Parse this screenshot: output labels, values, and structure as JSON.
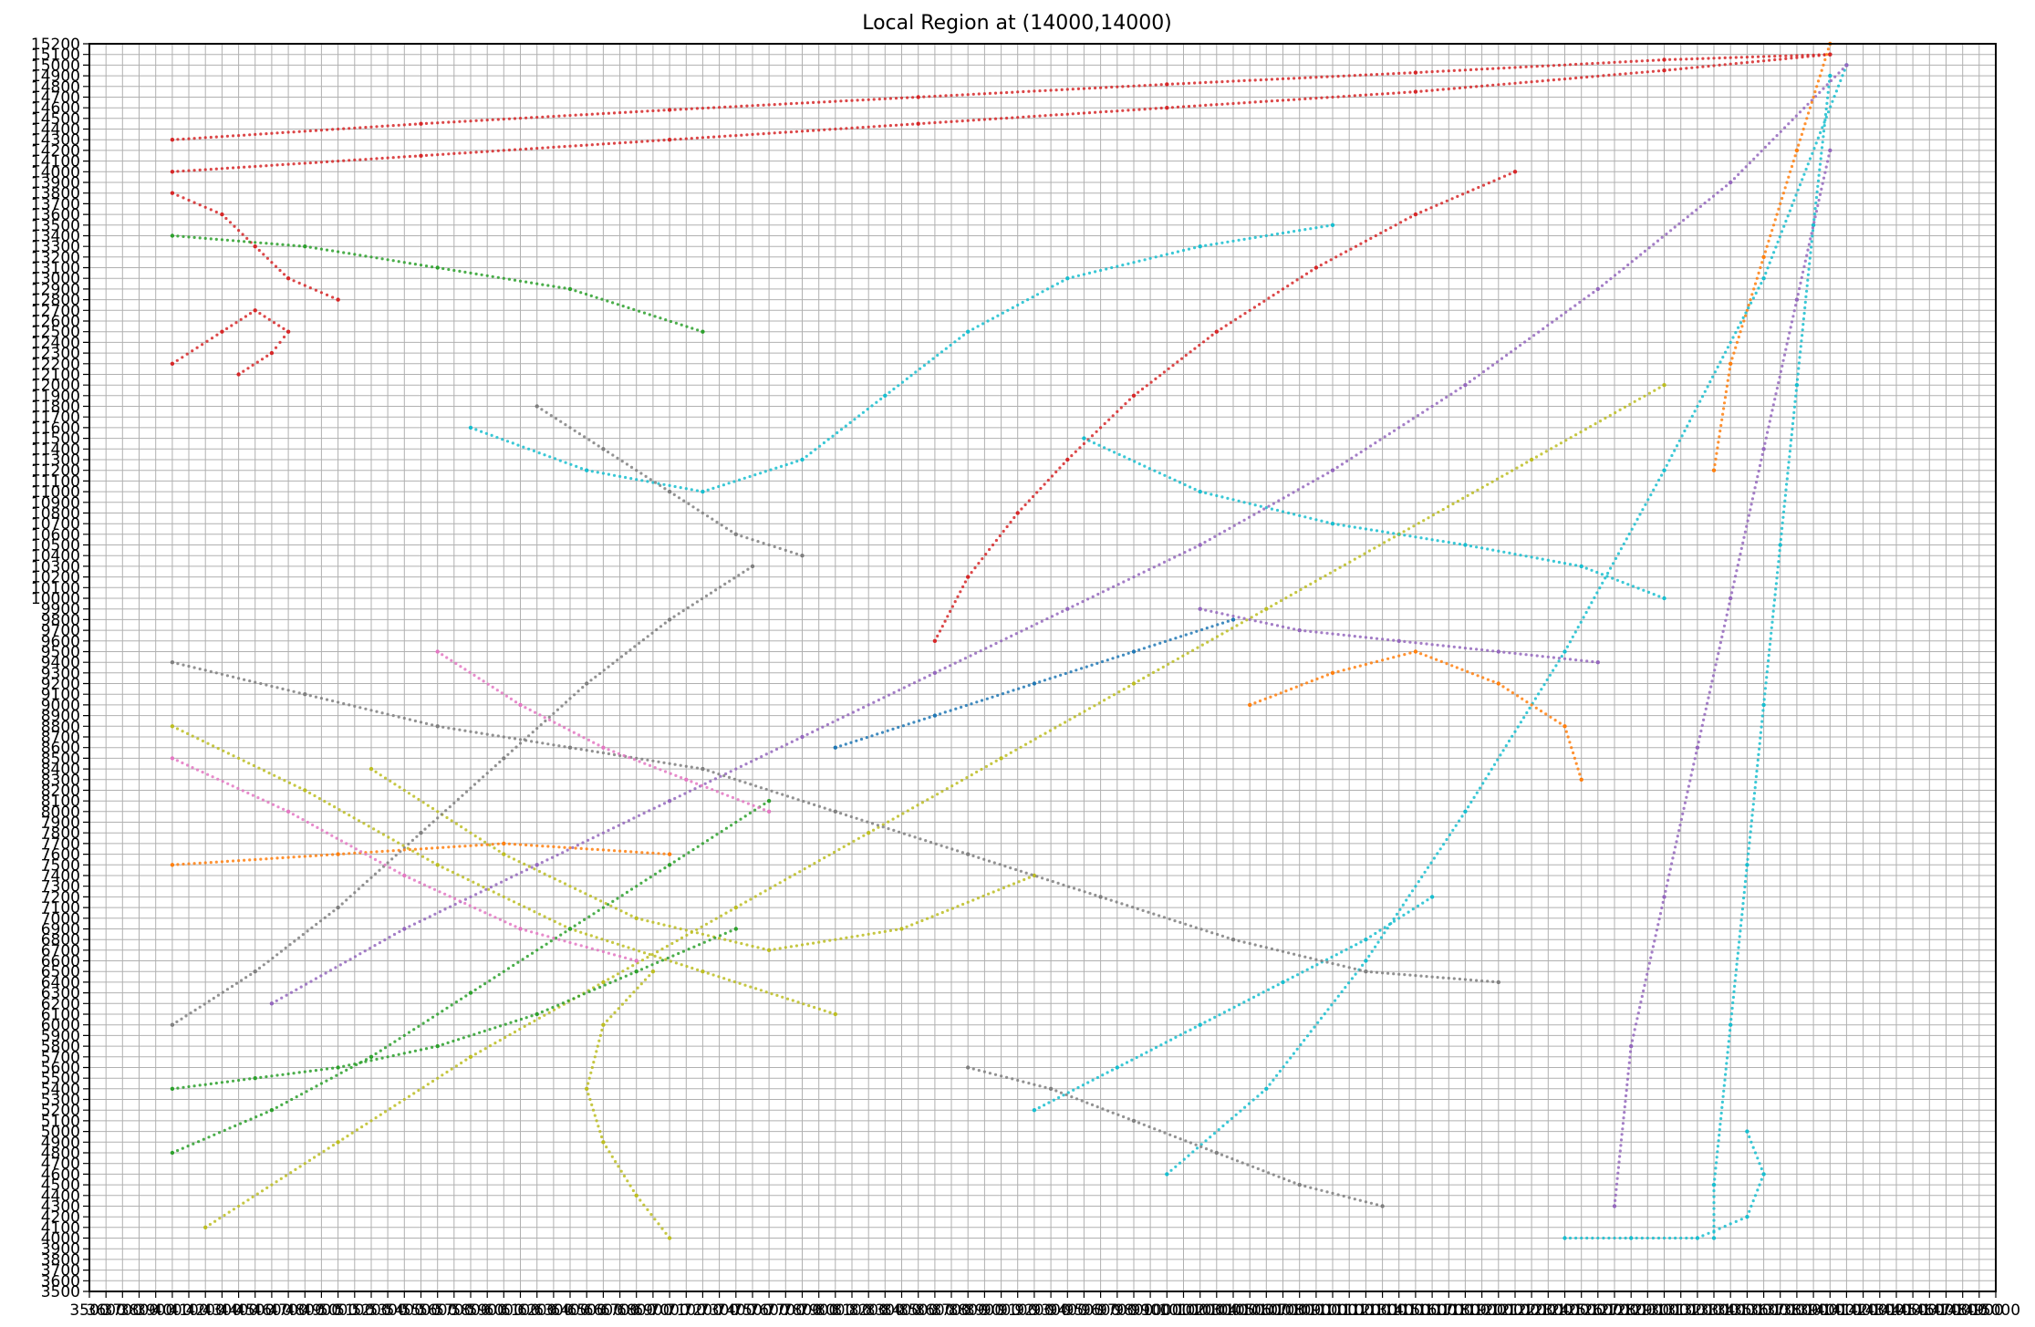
{
  "chart_data": {
    "type": "scatter",
    "title": "Local Region at (14000,14000)",
    "xlabel": "",
    "ylabel": "",
    "xlim": [
      3500,
      15000
    ],
    "ylim": [
      3500,
      15200
    ],
    "grid": true,
    "grid_step": 100,
    "tick_step": 100,
    "legend": "none",
    "series_colors": [
      "#1f77b4",
      "#ff7f0e",
      "#2ca02c",
      "#d62728",
      "#9467bd",
      "#8c564b",
      "#e377c2",
      "#7f7f7f",
      "#bcbd22",
      "#17becf"
    ],
    "series": [
      {
        "color": "#d62728",
        "points": [
          [
            4000,
            14300
          ],
          [
            5500,
            14450
          ],
          [
            7000,
            14580
          ],
          [
            8500,
            14700
          ],
          [
            10000,
            14820
          ],
          [
            11500,
            14930
          ],
          [
            13000,
            15050
          ],
          [
            14000,
            15100
          ]
        ]
      },
      {
        "color": "#d62728",
        "points": [
          [
            4000,
            14000
          ],
          [
            5500,
            14150
          ],
          [
            7000,
            14300
          ],
          [
            8500,
            14450
          ],
          [
            10000,
            14600
          ],
          [
            11500,
            14750
          ],
          [
            13000,
            14950
          ],
          [
            14000,
            15100
          ]
        ]
      },
      {
        "color": "#d62728",
        "points": [
          [
            4000,
            13800
          ],
          [
            4300,
            13600
          ],
          [
            4500,
            13300
          ],
          [
            4700,
            13000
          ],
          [
            5000,
            12800
          ]
        ]
      },
      {
        "color": "#d62728",
        "points": [
          [
            4000,
            12200
          ],
          [
            4300,
            12500
          ],
          [
            4500,
            12700
          ],
          [
            4700,
            12500
          ],
          [
            4600,
            12300
          ],
          [
            4400,
            12100
          ]
        ]
      },
      {
        "color": "#d62728",
        "points": [
          [
            8600,
            9600
          ],
          [
            8800,
            10200
          ],
          [
            9100,
            10800
          ],
          [
            9400,
            11300
          ],
          [
            9800,
            11900
          ],
          [
            10300,
            12500
          ],
          [
            10900,
            13100
          ],
          [
            11500,
            13600
          ],
          [
            12100,
            14000
          ]
        ]
      },
      {
        "color": "#bcbd22",
        "points": [
          [
            4200,
            4100
          ],
          [
            5000,
            4900
          ],
          [
            5800,
            5700
          ],
          [
            6600,
            6400
          ],
          [
            7400,
            7100
          ],
          [
            8200,
            7800
          ],
          [
            9000,
            8500
          ],
          [
            9800,
            9200
          ],
          [
            10600,
            9900
          ],
          [
            11400,
            10600
          ],
          [
            12200,
            11300
          ],
          [
            13000,
            12000
          ]
        ]
      },
      {
        "color": "#bcbd22",
        "points": [
          [
            4000,
            8800
          ],
          [
            4800,
            8200
          ],
          [
            5600,
            7500
          ],
          [
            6400,
            6900
          ],
          [
            7200,
            6500
          ],
          [
            8000,
            6100
          ]
        ]
      },
      {
        "color": "#bcbd22",
        "points": [
          [
            5200,
            8400
          ],
          [
            6000,
            7600
          ],
          [
            6800,
            7000
          ],
          [
            7600,
            6700
          ],
          [
            8400,
            6900
          ],
          [
            9200,
            7400
          ]
        ]
      },
      {
        "color": "#bcbd22",
        "points": [
          [
            7000,
            4000
          ],
          [
            6800,
            4400
          ],
          [
            6600,
            4900
          ],
          [
            6500,
            5400
          ],
          [
            6600,
            6000
          ],
          [
            6900,
            6500
          ]
        ]
      },
      {
        "color": "#17becf",
        "points": [
          [
            14000,
            14900
          ],
          [
            13900,
            13500
          ],
          [
            13800,
            12000
          ],
          [
            13700,
            10500
          ],
          [
            13600,
            9000
          ],
          [
            13500,
            7500
          ],
          [
            13400,
            6000
          ],
          [
            13300,
            4500
          ],
          [
            13300,
            4000
          ]
        ]
      },
      {
        "color": "#17becf",
        "points": [
          [
            14100,
            15000
          ],
          [
            13600,
            13000
          ],
          [
            13000,
            11200
          ],
          [
            12400,
            9500
          ],
          [
            11800,
            8000
          ],
          [
            11200,
            6600
          ],
          [
            10600,
            5400
          ],
          [
            10000,
            4600
          ]
        ]
      },
      {
        "color": "#17becf",
        "points": [
          [
            9500,
            11500
          ],
          [
            10200,
            11000
          ],
          [
            11000,
            10700
          ],
          [
            11800,
            10500
          ],
          [
            12500,
            10300
          ],
          [
            13000,
            10000
          ]
        ]
      },
      {
        "color": "#17becf",
        "points": [
          [
            5800,
            11600
          ],
          [
            6500,
            11200
          ],
          [
            7200,
            11000
          ],
          [
            7800,
            11300
          ],
          [
            8300,
            11900
          ],
          [
            8800,
            12500
          ],
          [
            9400,
            13000
          ],
          [
            10200,
            13300
          ],
          [
            11000,
            13500
          ]
        ]
      },
      {
        "color": "#17becf",
        "points": [
          [
            12400,
            4000
          ],
          [
            12800,
            4000
          ],
          [
            13200,
            4000
          ],
          [
            13500,
            4200
          ],
          [
            13600,
            4600
          ],
          [
            13500,
            5000
          ]
        ]
      },
      {
        "color": "#17becf",
        "points": [
          [
            9200,
            5200
          ],
          [
            9700,
            5600
          ],
          [
            10200,
            6000
          ],
          [
            10700,
            6400
          ],
          [
            11200,
            6800
          ],
          [
            11600,
            7200
          ]
        ]
      },
      {
        "color": "#9467bd",
        "points": [
          [
            14100,
            15000
          ],
          [
            13400,
            13900
          ],
          [
            12600,
            12900
          ],
          [
            11800,
            12000
          ],
          [
            11000,
            11200
          ],
          [
            10200,
            10500
          ],
          [
            9400,
            9900
          ],
          [
            8600,
            9300
          ],
          [
            7800,
            8700
          ],
          [
            7000,
            8100
          ],
          [
            6200,
            7500
          ],
          [
            5400,
            6900
          ],
          [
            4600,
            6200
          ]
        ]
      },
      {
        "color": "#9467bd",
        "points": [
          [
            14000,
            14200
          ],
          [
            13800,
            12800
          ],
          [
            13600,
            11400
          ],
          [
            13400,
            10000
          ],
          [
            13200,
            8600
          ],
          [
            13000,
            7200
          ],
          [
            12800,
            5800
          ],
          [
            12700,
            4300
          ]
        ]
      },
      {
        "color": "#9467bd",
        "points": [
          [
            10200,
            9900
          ],
          [
            10800,
            9700
          ],
          [
            11400,
            9600
          ],
          [
            12000,
            9500
          ],
          [
            12600,
            9400
          ]
        ]
      },
      {
        "color": "#7f7f7f",
        "points": [
          [
            4000,
            9400
          ],
          [
            4800,
            9100
          ],
          [
            5600,
            8800
          ],
          [
            6400,
            8600
          ],
          [
            7200,
            8400
          ],
          [
            8000,
            8000
          ],
          [
            8800,
            7600
          ],
          [
            9600,
            7200
          ],
          [
            10400,
            6800
          ],
          [
            11200,
            6500
          ],
          [
            12000,
            6400
          ]
        ]
      },
      {
        "color": "#7f7f7f",
        "points": [
          [
            4000,
            6000
          ],
          [
            4500,
            6500
          ],
          [
            5000,
            7100
          ],
          [
            5500,
            7800
          ],
          [
            6000,
            8500
          ],
          [
            6500,
            9200
          ],
          [
            7000,
            9800
          ],
          [
            7500,
            10300
          ]
        ]
      },
      {
        "color": "#7f7f7f",
        "points": [
          [
            6200,
            11800
          ],
          [
            6600,
            11400
          ],
          [
            7000,
            11000
          ],
          [
            7400,
            10600
          ],
          [
            7800,
            10400
          ]
        ]
      },
      {
        "color": "#7f7f7f",
        "points": [
          [
            8800,
            5600
          ],
          [
            9300,
            5400
          ],
          [
            9800,
            5100
          ],
          [
            10300,
            4800
          ],
          [
            10800,
            4500
          ],
          [
            11300,
            4300
          ]
        ]
      },
      {
        "color": "#ff7f0e",
        "points": [
          [
            10500,
            9000
          ],
          [
            11000,
            9300
          ],
          [
            11500,
            9500
          ],
          [
            12000,
            9200
          ],
          [
            12400,
            8800
          ],
          [
            12500,
            8300
          ]
        ]
      },
      {
        "color": "#ff7f0e",
        "points": [
          [
            14000,
            15200
          ],
          [
            13800,
            14200
          ],
          [
            13600,
            13200
          ],
          [
            13400,
            12200
          ],
          [
            13300,
            11200
          ]
        ]
      },
      {
        "color": "#ff7f0e",
        "points": [
          [
            4000,
            7500
          ],
          [
            5000,
            7600
          ],
          [
            6000,
            7700
          ],
          [
            7000,
            7600
          ]
        ]
      },
      {
        "color": "#2ca02c",
        "points": [
          [
            4000,
            5400
          ],
          [
            4500,
            5500
          ],
          [
            5000,
            5600
          ],
          [
            5600,
            5800
          ],
          [
            6200,
            6100
          ],
          [
            6800,
            6500
          ],
          [
            7400,
            6900
          ]
        ]
      },
      {
        "color": "#2ca02c",
        "points": [
          [
            4000,
            4800
          ],
          [
            4600,
            5200
          ],
          [
            5200,
            5700
          ],
          [
            5800,
            6300
          ],
          [
            6400,
            6900
          ],
          [
            7000,
            7500
          ],
          [
            7600,
            8100
          ]
        ]
      },
      {
        "color": "#2ca02c",
        "points": [
          [
            4000,
            13400
          ],
          [
            4800,
            13300
          ],
          [
            5600,
            13100
          ],
          [
            6400,
            12900
          ],
          [
            7200,
            12500
          ]
        ]
      },
      {
        "color": "#e377c2",
        "points": [
          [
            4000,
            8500
          ],
          [
            4700,
            8000
          ],
          [
            5400,
            7400
          ],
          [
            6100,
            6900
          ],
          [
            6800,
            6600
          ]
        ]
      },
      {
        "color": "#e377c2",
        "points": [
          [
            5600,
            9500
          ],
          [
            6100,
            9000
          ],
          [
            6600,
            8600
          ],
          [
            7100,
            8300
          ],
          [
            7600,
            8000
          ]
        ]
      },
      {
        "color": "#1f77b4",
        "points": [
          [
            8000,
            8600
          ],
          [
            8600,
            8900
          ],
          [
            9200,
            9200
          ],
          [
            9800,
            9500
          ],
          [
            10400,
            9800
          ]
        ]
      }
    ]
  }
}
